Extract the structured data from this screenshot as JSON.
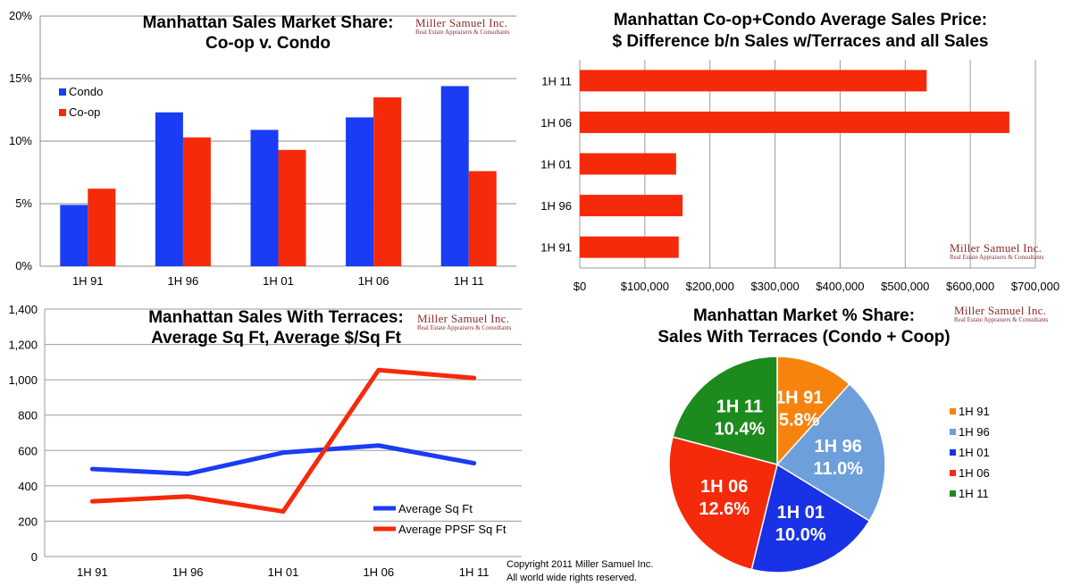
{
  "chart_data": [
    {
      "id": "share",
      "type": "bar",
      "title": [
        "Manhattan Sales Market Share:",
        "Co-op v. Condo"
      ],
      "categories": [
        "1H 91",
        "1H 96",
        "1H 01",
        "1H 06",
        "1H 11"
      ],
      "series": [
        {
          "name": "Condo",
          "color": "#1a3cf5",
          "values": [
            4.9,
            12.3,
            10.9,
            11.9,
            14.4
          ]
        },
        {
          "name": "Co-op",
          "color": "#f52a0a",
          "values": [
            6.2,
            10.3,
            9.3,
            13.5,
            7.6
          ]
        }
      ],
      "yticks": [
        "0%",
        "5%",
        "10%",
        "15%",
        "20%"
      ],
      "ylim": [
        0,
        20
      ],
      "grid": true,
      "legend": "top-left"
    },
    {
      "id": "terrace_premium",
      "type": "bar",
      "orientation": "horizontal",
      "title": [
        "Manhattan Co-op+Condo Average Sales Price:",
        "$ Difference b/n Sales  w/Terraces and all Sales"
      ],
      "categories": [
        "1H 11",
        "1H 06",
        "1H 01",
        "1H 96",
        "1H 91"
      ],
      "values": [
        533000,
        660000,
        148000,
        158000,
        152000
      ],
      "color": "#f52a0a",
      "xticks": [
        "$0",
        "$100,000",
        "$200,000",
        "$300,000",
        "$400,000",
        "$500,000",
        "$600,000",
        "$700,000"
      ],
      "xlim": [
        0,
        700000
      ],
      "grid": true
    },
    {
      "id": "terraces_line",
      "type": "line",
      "title": [
        "Manhattan Sales With Terraces:",
        "Average Sq Ft, Average $/Sq Ft"
      ],
      "categories": [
        "1H 91",
        "1H 96",
        "1H 01",
        "1H 06",
        "1H 11"
      ],
      "series": [
        {
          "name": "Average Sq Ft",
          "color": "#1a3cf5",
          "values": [
            495,
            468,
            588,
            628,
            528
          ]
        },
        {
          "name": "Average PPSF Sq Ft",
          "color": "#f52a0a",
          "values": [
            312,
            340,
            255,
            1055,
            1010
          ]
        }
      ],
      "yticks": [
        "0",
        "200",
        "400",
        "600",
        "800",
        "1,000",
        "1,200",
        "1,400"
      ],
      "ylim": [
        0,
        1400
      ],
      "grid": true,
      "legend": "bottom-right"
    },
    {
      "id": "terraces_pie",
      "type": "pie",
      "title": [
        "Manhattan Market % Share:",
        "Sales With Terraces (Condo + Coop)"
      ],
      "slices": [
        {
          "label": "1H 91",
          "value": 5.8,
          "text": "5.8%",
          "color": "#f7830f"
        },
        {
          "label": "1H 96",
          "value": 11.0,
          "text": "11.0%",
          "color": "#6d9fdb"
        },
        {
          "label": "1H 01",
          "value": 10.0,
          "text": "10.0%",
          "color": "#1a32e6"
        },
        {
          "label": "1H 06",
          "value": 12.6,
          "text": "12.6%",
          "color": "#f52a0a"
        },
        {
          "label": "1H 11",
          "value": 10.4,
          "text": "10.4%",
          "color": "#1d8a1d"
        }
      ],
      "legend": "right"
    }
  ],
  "logo": {
    "name": "Miller Samuel Inc.",
    "tagline": "Real Estate Appraisers & Consultants"
  },
  "copyright": {
    "line1": "Copyright 2011 Miller Samuel Inc.",
    "line2": "All world wide rights reserved."
  }
}
